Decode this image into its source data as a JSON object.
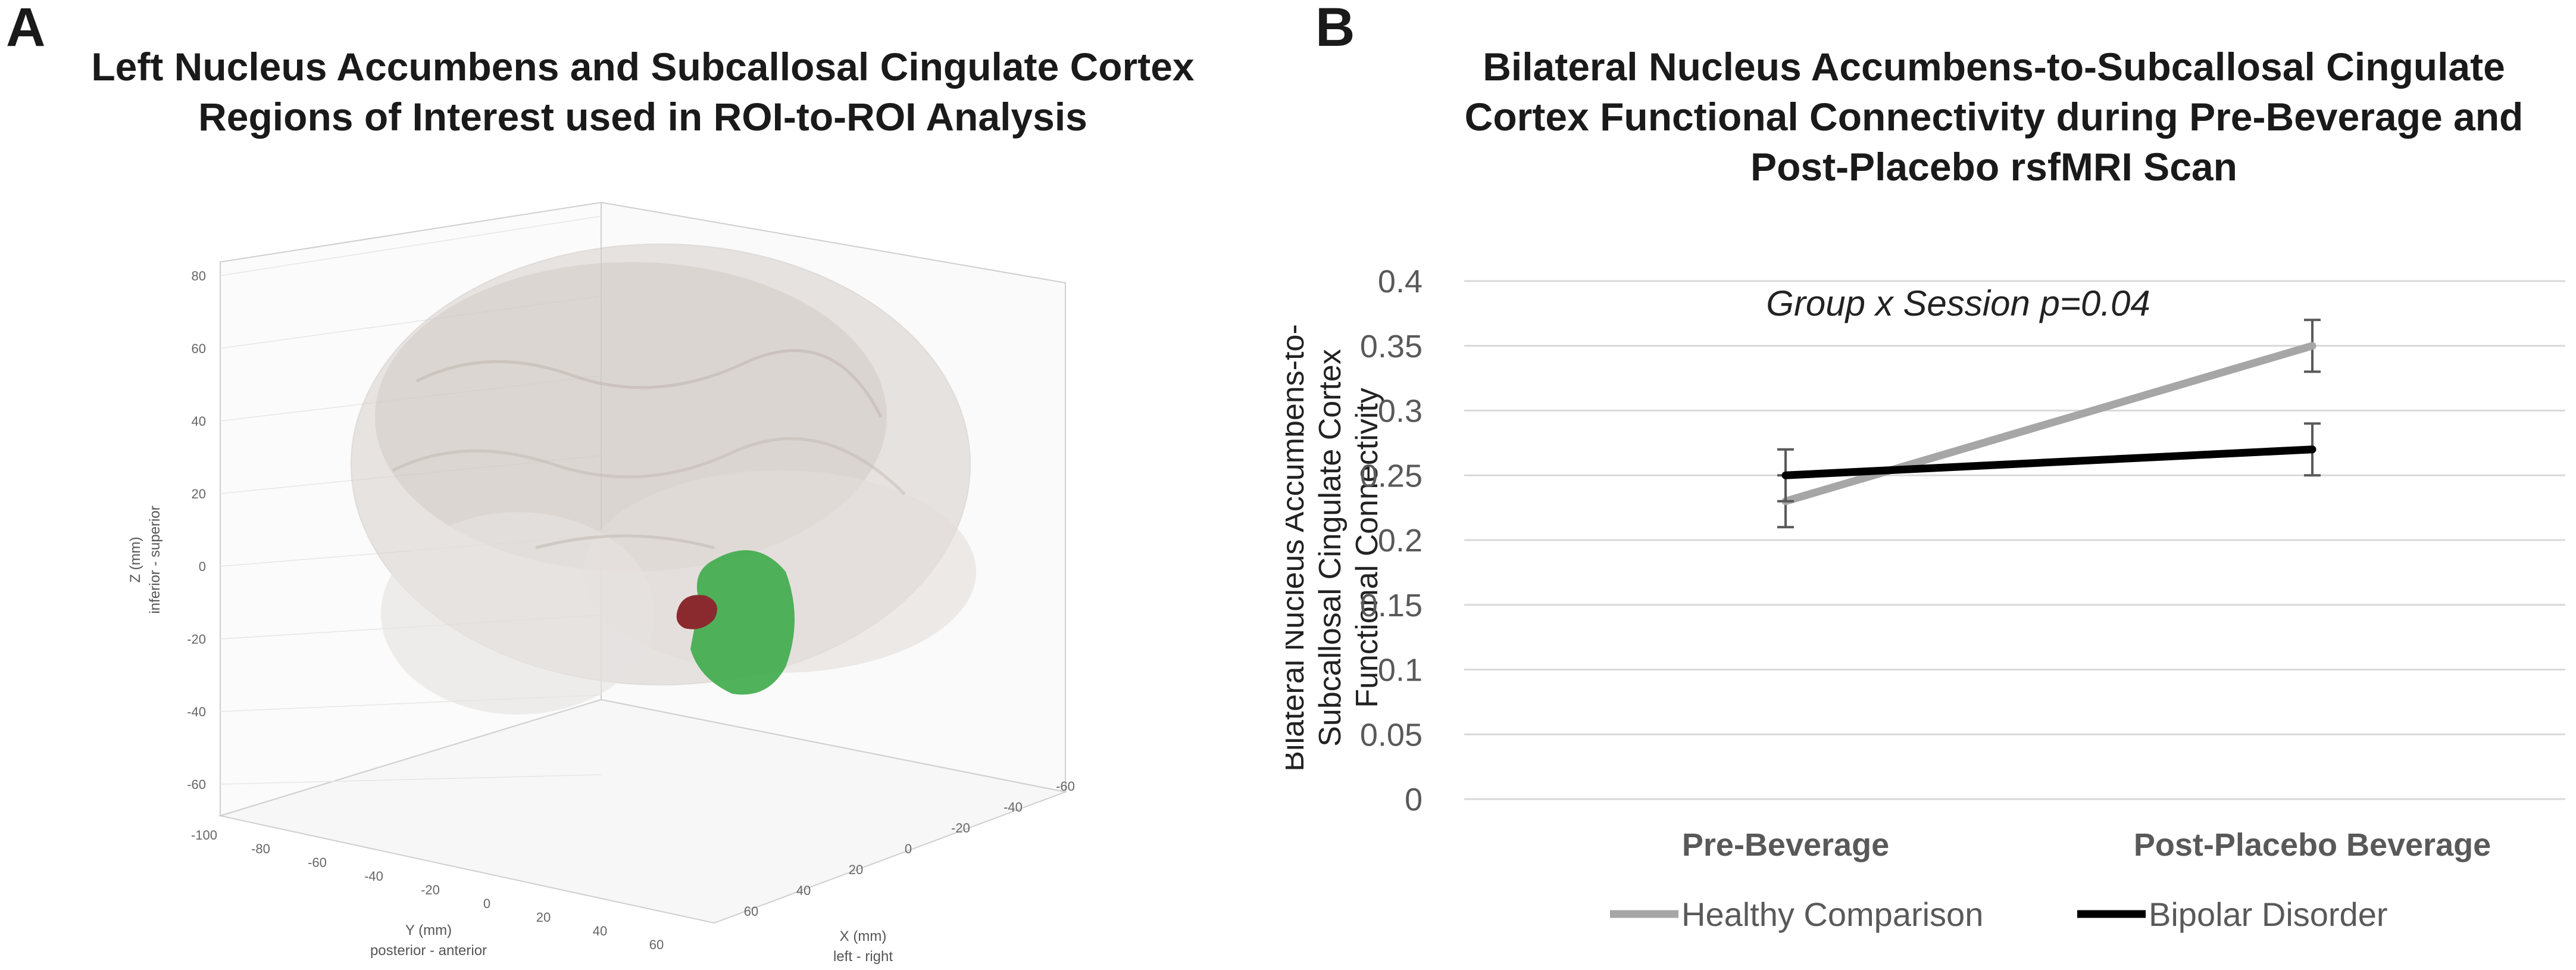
{
  "panel_a": {
    "letter": "A",
    "title_lines": [
      "Left Nucleus Accumbens and Subcallosal Cingulate Cortex",
      "Regions of Interest used in ROI-to-ROI Analysis"
    ],
    "axes": {
      "z_label": "Z (mm)",
      "z_sub": "inferior - superior",
      "z_ticks": [
        "80",
        "60",
        "40",
        "20",
        "0",
        "-20",
        "-40",
        "-60"
      ],
      "y_label": "Y (mm)",
      "y_sub": "posterior - anterior",
      "y_ticks": [
        "-100",
        "-80",
        "-60",
        "-40",
        "-20",
        "0",
        "20",
        "40",
        "60"
      ],
      "x_label": "X (mm)",
      "x_sub": "left - right",
      "x_ticks": [
        "60",
        "40",
        "20",
        "0",
        "-20",
        "-40",
        "-60"
      ]
    },
    "colors": {
      "brain": "#cfc8c4",
      "nucleus_accumbens": "#8b2a2e",
      "subcallosal_cingulate": "#3dab4a"
    }
  },
  "panel_b": {
    "letter": "B",
    "title_lines": [
      "Bilateral Nucleus Accumbens-to-Subcallosal Cingulate",
      "Cortex Functional Connectivity during Pre-Beverage and",
      "Post-Placebo rsfMRI Scan"
    ]
  },
  "chart_data": {
    "type": "line",
    "categories": [
      "Pre-Beverage",
      "Post-Placebo Beverage"
    ],
    "series": [
      {
        "name": "Healthy Comparison",
        "values": [
          0.23,
          0.35
        ],
        "errors": [
          0.02,
          0.02
        ],
        "color": "#a6a6a6"
      },
      {
        "name": "Bipolar Disorder",
        "values": [
          0.25,
          0.27
        ],
        "errors": [
          0.02,
          0.02
        ],
        "color": "#000000"
      }
    ],
    "title": "Bilateral Nucleus Accumbens-to-Subcallosal Cingulate Cortex Functional Connectivity during Pre-Beverage and Post-Placebo rsfMRI Scan",
    "ylabel_lines": [
      "Bilateral Nucleus Accumbens-to-",
      "Subcallosal Cingulate Cortex",
      "Functional Connectivity"
    ],
    "yticks": [
      "0",
      "0.05",
      "0.1",
      "0.15",
      "0.2",
      "0.25",
      "0.3",
      "0.35",
      "0.4"
    ],
    "ylim": [
      0,
      0.4
    ],
    "grid": true,
    "annotation": "Group x Session p=0.04",
    "legend_position": "bottom"
  }
}
